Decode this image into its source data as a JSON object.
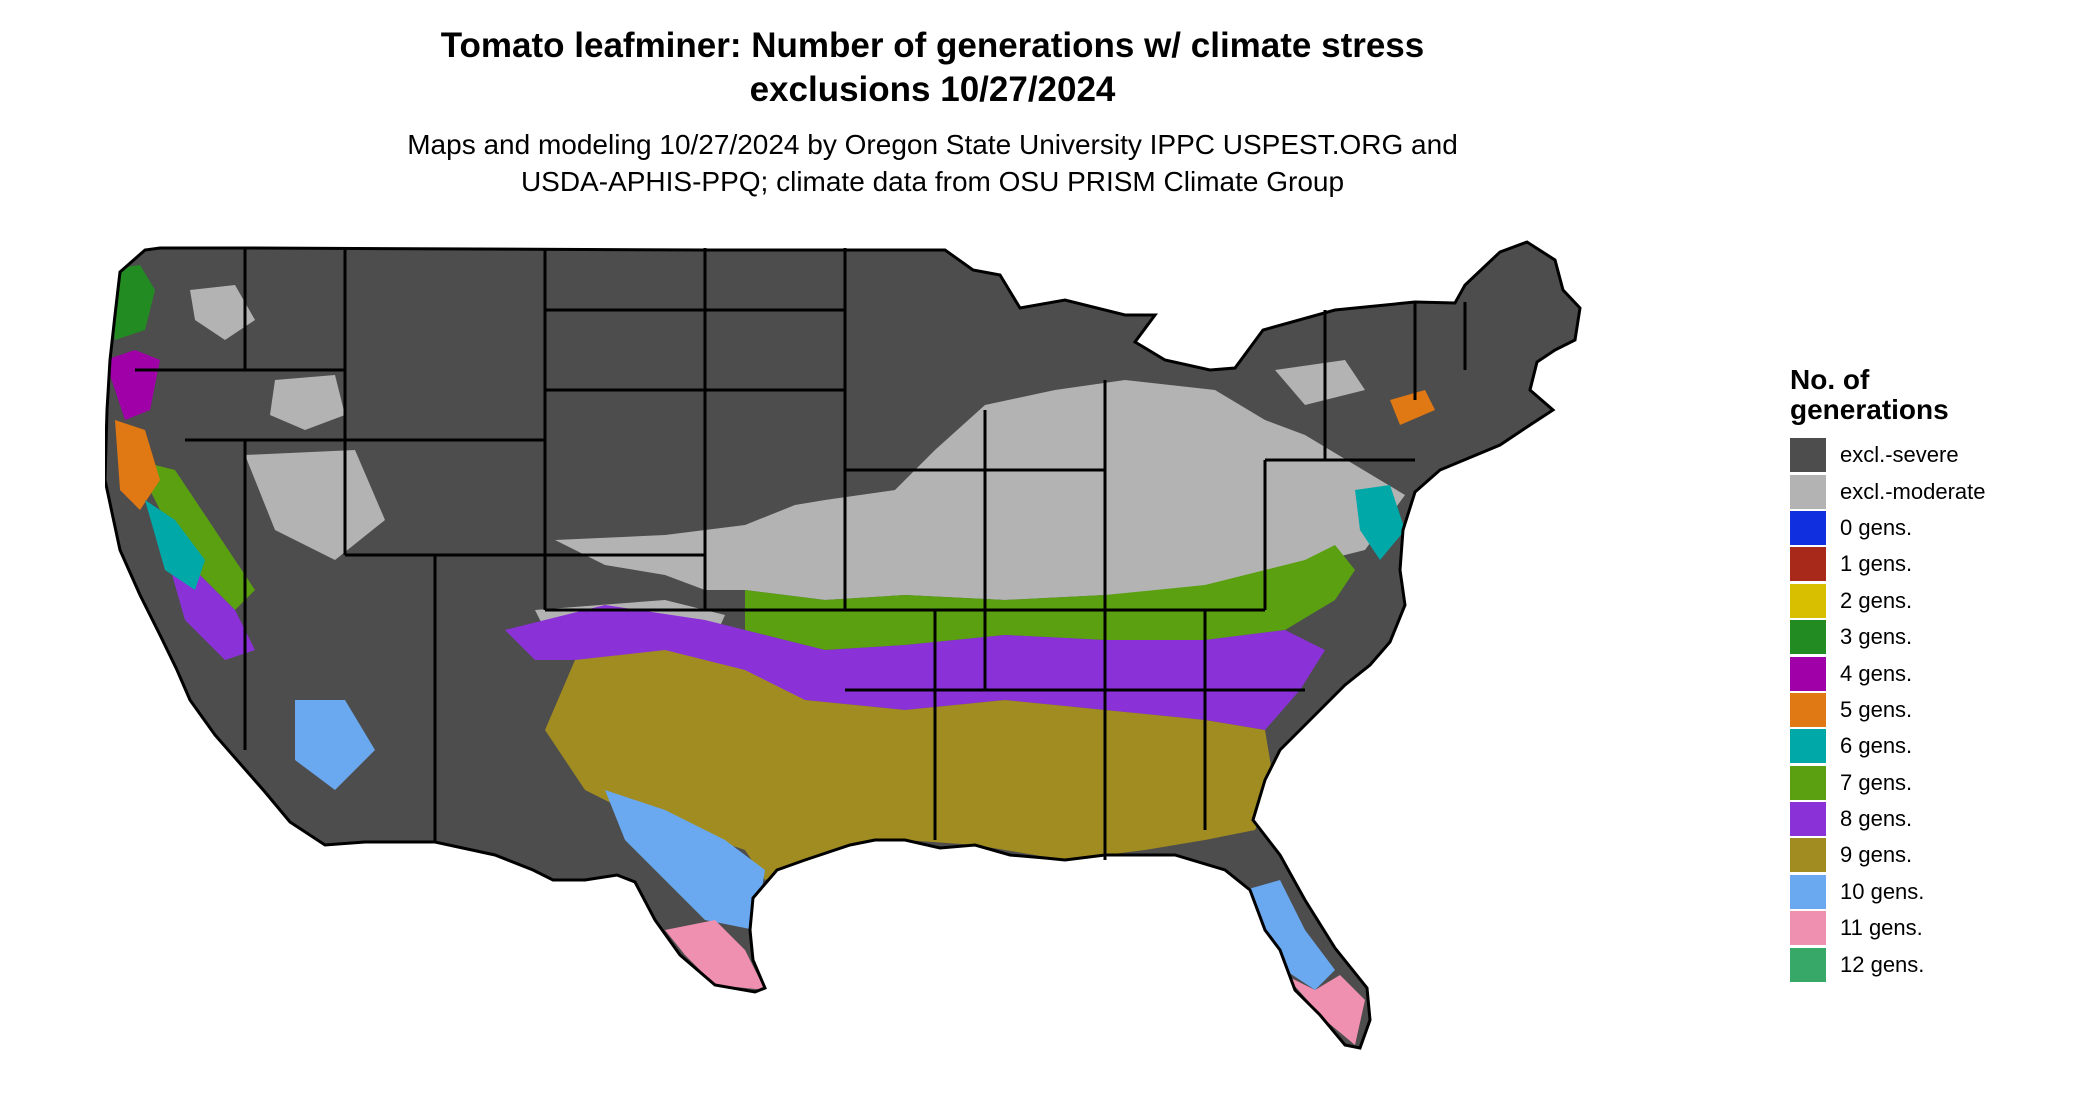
{
  "title_line1": "Tomato leafminer: Number of generations w/ climate stress",
  "title_line2": "exclusions 10/27/2024",
  "subtitle_line1": "Maps and modeling 10/27/2024 by Oregon State University IPPC USPEST.ORG and",
  "subtitle_line2": "USDA-APHIS-PPQ; climate data from OSU PRISM Climate Group",
  "legend": {
    "title_line1": "No. of",
    "title_line2": "generations",
    "items": [
      {
        "label": "excl.-severe",
        "color": "#4d4d4d"
      },
      {
        "label": "excl.-moderate",
        "color": "#b3b3b3"
      },
      {
        "label": "0 gens.",
        "color": "#1030e0"
      },
      {
        "label": "1 gens.",
        "color": "#a8281a"
      },
      {
        "label": "2 gens.",
        "color": "#d8c000"
      },
      {
        "label": "3 gens.",
        "color": "#228b22"
      },
      {
        "label": "4 gens.",
        "color": "#a000a8"
      },
      {
        "label": "5 gens.",
        "color": "#e07814"
      },
      {
        "label": "6 gens.",
        "color": "#00a8a8"
      },
      {
        "label": "7 gens.",
        "color": "#5aa010"
      },
      {
        "label": "8 gens.",
        "color": "#8a32d8"
      },
      {
        "label": "9 gens.",
        "color": "#a08c20"
      },
      {
        "label": "10 gens.",
        "color": "#6aa8f0"
      },
      {
        "label": "11 gens.",
        "color": "#f090b0"
      },
      {
        "label": "12 gens.",
        "color": "#38a868"
      }
    ]
  }
}
